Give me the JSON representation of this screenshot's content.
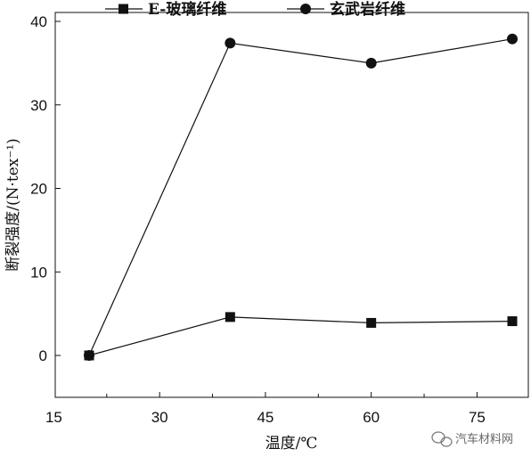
{
  "chart_data": {
    "type": "line",
    "x": [
      20,
      40,
      60,
      80
    ],
    "series": [
      {
        "name": "E-玻璃纤维",
        "marker": "square",
        "color": "#111111",
        "values": [
          0.0,
          4.6,
          3.9,
          4.1
        ]
      },
      {
        "name": "玄武岩纤维",
        "marker": "circle",
        "color": "#111111",
        "values": [
          0.0,
          37.4,
          35.0,
          37.9
        ]
      }
    ],
    "xlabel": "温度/℃",
    "ylabel": "断裂强度/(N·tex⁻¹)",
    "xlim": [
      15,
      80
    ],
    "ylim": [
      -5,
      40
    ],
    "xticks": [
      15,
      30,
      45,
      60,
      75
    ],
    "yticks": [
      0,
      10,
      20,
      30,
      40
    ],
    "grid": false,
    "legend_position": "top"
  },
  "watermark": {
    "text": "汽车材料网",
    "icon": "wechat-icon"
  }
}
